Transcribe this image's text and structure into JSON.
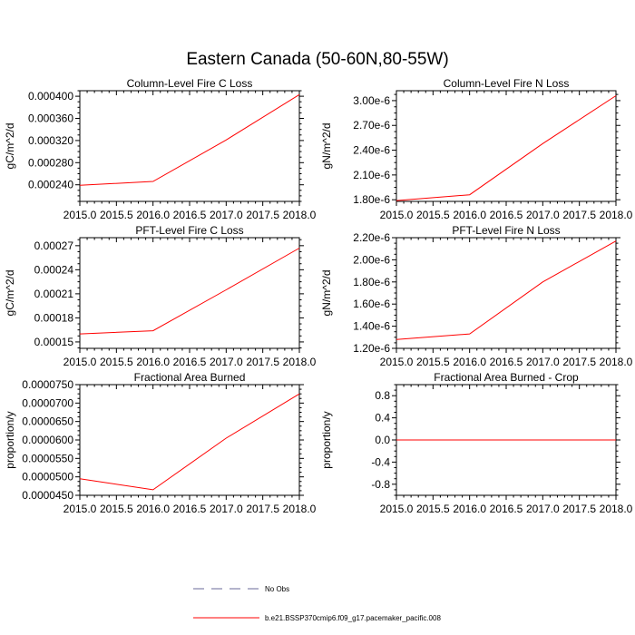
{
  "title": "Eastern Canada (50-60N,80-55W)",
  "legend": {
    "placement": "bottom",
    "entries": [
      {
        "label": "No Obs",
        "color": "#6a6a9a",
        "dash": true
      },
      {
        "label": "b.e21.BSSP370cmip6.f09_g17.pacemaker_pacific.008",
        "color": "#ff0000",
        "dash": false
      }
    ]
  },
  "chart_data": [
    {
      "type": "line",
      "title": "Column-Level Fire C Loss",
      "xlabel": "",
      "ylabel": "gC/m^2/d",
      "xlim": [
        2015.0,
        2018.0
      ],
      "ylim": [
        0.00021,
        0.00041
      ],
      "xticks": [
        2015.0,
        2015.5,
        2016.0,
        2016.5,
        2017.0,
        2017.5,
        2018.0
      ],
      "xtick_labels": [
        "2015.0",
        "2015.5",
        "2016.0",
        "2016.5",
        "2017.0",
        "2017.5",
        "2018.0"
      ],
      "yticks": [
        0.00024,
        0.00028,
        0.00032,
        0.00036,
        0.0004
      ],
      "ytick_labels": [
        "0.000240",
        "0.000280",
        "0.000320",
        "0.000360",
        "0.000400"
      ],
      "x": [
        2015.0,
        2016.0,
        2017.0,
        2018.0
      ],
      "series": [
        {
          "name": "b.e21.BSSP370cmip6.f09_g17.pacemaker_pacific.008",
          "color": "#ff0000",
          "values": [
            0.000239,
            0.000246,
            0.000321,
            0.000403
          ]
        }
      ]
    },
    {
      "type": "line",
      "title": "Column-Level Fire N Loss",
      "xlabel": "",
      "ylabel": "gN/m^2/d",
      "xlim": [
        2015.0,
        2018.0
      ],
      "ylim": [
        1.78e-06,
        3.12e-06
      ],
      "xticks": [
        2015.0,
        2015.5,
        2016.0,
        2016.5,
        2017.0,
        2017.5,
        2018.0
      ],
      "xtick_labels": [
        "2015.0",
        "2015.5",
        "2016.0",
        "2016.5",
        "2017.0",
        "2017.5",
        "2018.0"
      ],
      "yticks": [
        1.8e-06,
        2.1e-06,
        2.4e-06,
        2.7e-06,
        3e-06
      ],
      "ytick_labels": [
        "1.80e-6",
        "2.10e-6",
        "2.40e-6",
        "2.70e-6",
        "3.00e-6"
      ],
      "x": [
        2015.0,
        2016.0,
        2017.0,
        2018.0
      ],
      "series": [
        {
          "name": "b.e21.BSSP370cmip6.f09_g17.pacemaker_pacific.008",
          "color": "#ff0000",
          "values": [
            1.79e-06,
            1.86e-06,
            2.48e-06,
            3.06e-06
          ]
        }
      ]
    },
    {
      "type": "line",
      "title": "PFT-Level Fire C Loss",
      "xlabel": "",
      "ylabel": "gC/m^2/d",
      "xlim": [
        2015.0,
        2018.0
      ],
      "ylim": [
        0.000142,
        0.00028
      ],
      "xticks": [
        2015.0,
        2015.5,
        2016.0,
        2016.5,
        2017.0,
        2017.5,
        2018.0
      ],
      "xtick_labels": [
        "2015.0",
        "2015.5",
        "2016.0",
        "2016.5",
        "2017.0",
        "2017.5",
        "2018.0"
      ],
      "yticks": [
        0.00015,
        0.00018,
        0.00021,
        0.00024,
        0.00027
      ],
      "ytick_labels": [
        "0.00015",
        "0.00018",
        "0.00021",
        "0.00024",
        "0.00027"
      ],
      "x": [
        2015.0,
        2016.0,
        2017.0,
        2018.0
      ],
      "series": [
        {
          "name": "b.e21.BSSP370cmip6.f09_g17.pacemaker_pacific.008",
          "color": "#ff0000",
          "values": [
            0.00016,
            0.000164,
            0.000215,
            0.000267
          ]
        }
      ]
    },
    {
      "type": "line",
      "title": "PFT-Level Fire N Loss",
      "xlabel": "",
      "ylabel": "gN/m^2/d",
      "xlim": [
        2015.0,
        2018.0
      ],
      "ylim": [
        1.2e-06,
        2.2e-06
      ],
      "xticks": [
        2015.0,
        2015.5,
        2016.0,
        2016.5,
        2017.0,
        2017.5,
        2018.0
      ],
      "xtick_labels": [
        "2015.0",
        "2015.5",
        "2016.0",
        "2016.5",
        "2017.0",
        "2017.5",
        "2018.0"
      ],
      "yticks": [
        1.2e-06,
        1.4e-06,
        1.6e-06,
        1.8e-06,
        2e-06,
        2.2e-06
      ],
      "ytick_labels": [
        "1.20e-6",
        "1.40e-6",
        "1.60e-6",
        "1.80e-6",
        "2.00e-6",
        "2.20e-6"
      ],
      "x": [
        2015.0,
        2016.0,
        2017.0,
        2018.0
      ],
      "series": [
        {
          "name": "b.e21.BSSP370cmip6.f09_g17.pacemaker_pacific.008",
          "color": "#ff0000",
          "values": [
            1.28e-06,
            1.33e-06,
            1.8e-06,
            2.17e-06
          ]
        }
      ]
    },
    {
      "type": "line",
      "title": "Fractional Area Burned",
      "xlabel": "",
      "ylabel": "proportion/y",
      "xlim": [
        2015.0,
        2018.0
      ],
      "ylim": [
        4.5e-05,
        7.5e-05
      ],
      "xticks": [
        2015.0,
        2015.5,
        2016.0,
        2016.5,
        2017.0,
        2017.5,
        2018.0
      ],
      "xtick_labels": [
        "2015.0",
        "2015.5",
        "2016.0",
        "2016.5",
        "2017.0",
        "2017.5",
        "2018.0"
      ],
      "yticks": [
        4.5e-05,
        5e-05,
        5.5e-05,
        6e-05,
        6.5e-05,
        7e-05,
        7.5e-05
      ],
      "ytick_labels": [
        "0.0000450",
        "0.0000500",
        "0.0000550",
        "0.0000600",
        "0.0000650",
        "0.0000700",
        "0.0000750"
      ],
      "x": [
        2015.0,
        2016.0,
        2017.0,
        2018.0
      ],
      "series": [
        {
          "name": "b.e21.BSSP370cmip6.f09_g17.pacemaker_pacific.008",
          "color": "#ff0000",
          "values": [
            4.95e-05,
            4.65e-05,
            6.05e-05,
            7.25e-05
          ]
        }
      ]
    },
    {
      "type": "line",
      "title": "Fractional Area Burned - Crop",
      "xlabel": "",
      "ylabel": "proportion/y",
      "xlim": [
        2015.0,
        2018.0
      ],
      "ylim": [
        -1.0,
        1.0
      ],
      "xticks": [
        2015.0,
        2015.5,
        2016.0,
        2016.5,
        2017.0,
        2017.5,
        2018.0
      ],
      "xtick_labels": [
        "2015.0",
        "2015.5",
        "2016.0",
        "2016.5",
        "2017.0",
        "2017.5",
        "2018.0"
      ],
      "yticks": [
        -0.8,
        -0.4,
        0.0,
        0.4,
        0.8
      ],
      "ytick_labels": [
        "-0.8",
        "-0.4",
        "0.0",
        "0.4",
        "0.8"
      ],
      "x": [
        2015.0,
        2016.0,
        2017.0,
        2018.0
      ],
      "series": [
        {
          "name": "b.e21.BSSP370cmip6.f09_g17.pacemaker_pacific.008",
          "color": "#ff0000",
          "values": [
            0.0,
            0.0,
            0.0,
            0.0
          ]
        }
      ]
    }
  ]
}
